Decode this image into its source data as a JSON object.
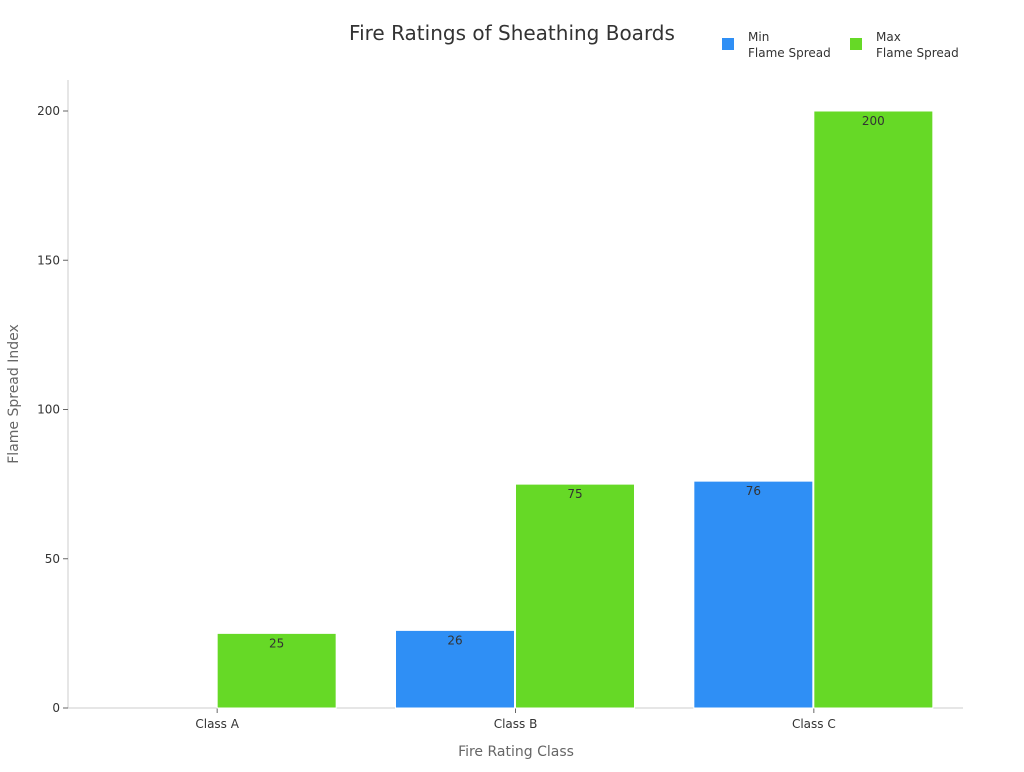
{
  "chart_data": {
    "type": "bar",
    "title": "Fire Ratings of Sheathing Boards",
    "xlabel": "Fire Rating Class",
    "ylabel": "Flame Spread Index",
    "categories": [
      "Class A",
      "Class B",
      "Class C"
    ],
    "series": [
      {
        "name": "Min\nFlame Spread",
        "legend_lines": [
          "Min",
          "Flame Spread"
        ],
        "values": [
          0,
          26,
          76
        ],
        "color": "#2f8ff5"
      },
      {
        "name": "Max\nFlame Spread",
        "legend_lines": [
          "Max",
          "Flame Spread"
        ],
        "values": [
          25,
          75,
          200
        ],
        "color": "#66d926"
      }
    ],
    "ylim": [
      0,
      200
    ],
    "yticks": [
      0,
      50,
      100,
      150,
      200
    ],
    "grid": false,
    "legend_position": "top-right",
    "data_labels": true
  }
}
